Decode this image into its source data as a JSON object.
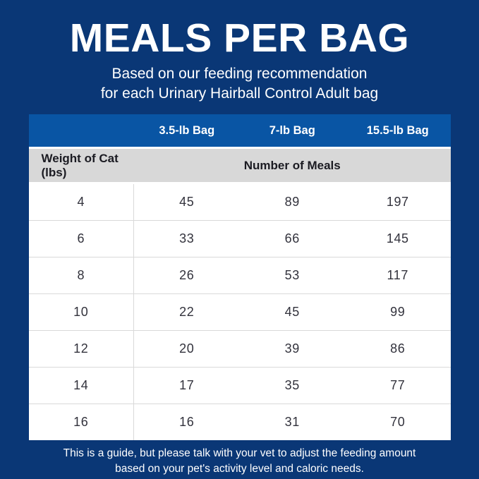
{
  "page": {
    "title": "MEALS PER BAG",
    "subtitle_line1": "Based on our feeding recommendation",
    "subtitle_line2": "for each Urinary Hairball Control Adult bag",
    "footer_line1": "This is a guide, but please talk with your vet to adjust the feeding amount",
    "footer_line2": "based on your pet's activity level and caloric needs."
  },
  "colors": {
    "background_navy": "#0a3776",
    "header_blue": "#0955a4",
    "subheader_gray": "#d8d8d8",
    "row_divider_gray": "#d9d9d9",
    "text_dark": "#1b1b22",
    "text_white": "#ffffff"
  },
  "table": {
    "column_headers": [
      "",
      "3.5-lb Bag",
      "7-lb Bag",
      "15.5-lb Bag"
    ],
    "subheader": {
      "col1": "Weight of Cat (lbs)",
      "span": "Number of Meals"
    },
    "rows": [
      {
        "weight": "4",
        "values": [
          "45",
          "89",
          "197"
        ]
      },
      {
        "weight": "6",
        "values": [
          "33",
          "66",
          "145"
        ]
      },
      {
        "weight": "8",
        "values": [
          "26",
          "53",
          "117"
        ]
      },
      {
        "weight": "10",
        "values": [
          "22",
          "45",
          "99"
        ]
      },
      {
        "weight": "12",
        "values": [
          "20",
          "39",
          "86"
        ]
      },
      {
        "weight": "14",
        "values": [
          "17",
          "35",
          "77"
        ]
      },
      {
        "weight": "16",
        "values": [
          "16",
          "31",
          "70"
        ]
      }
    ]
  },
  "chart_data": {
    "type": "table",
    "title": "MEALS PER BAG",
    "subtitle": "Based on our feeding recommendation for each Urinary Hairball Control Adult bag",
    "columns": [
      "Weight of Cat (lbs)",
      "3.5-lb Bag",
      "7-lb Bag",
      "15.5-lb Bag"
    ],
    "value_group_label": "Number of Meals",
    "rows": [
      [
        4,
        45,
        89,
        197
      ],
      [
        6,
        33,
        66,
        145
      ],
      [
        8,
        26,
        53,
        117
      ],
      [
        10,
        22,
        45,
        99
      ],
      [
        12,
        20,
        39,
        86
      ],
      [
        14,
        17,
        35,
        77
      ],
      [
        16,
        16,
        31,
        70
      ]
    ],
    "footnote": "This is a guide, but please talk with your vet to adjust the feeding amount based on your pet's activity level and caloric needs."
  }
}
